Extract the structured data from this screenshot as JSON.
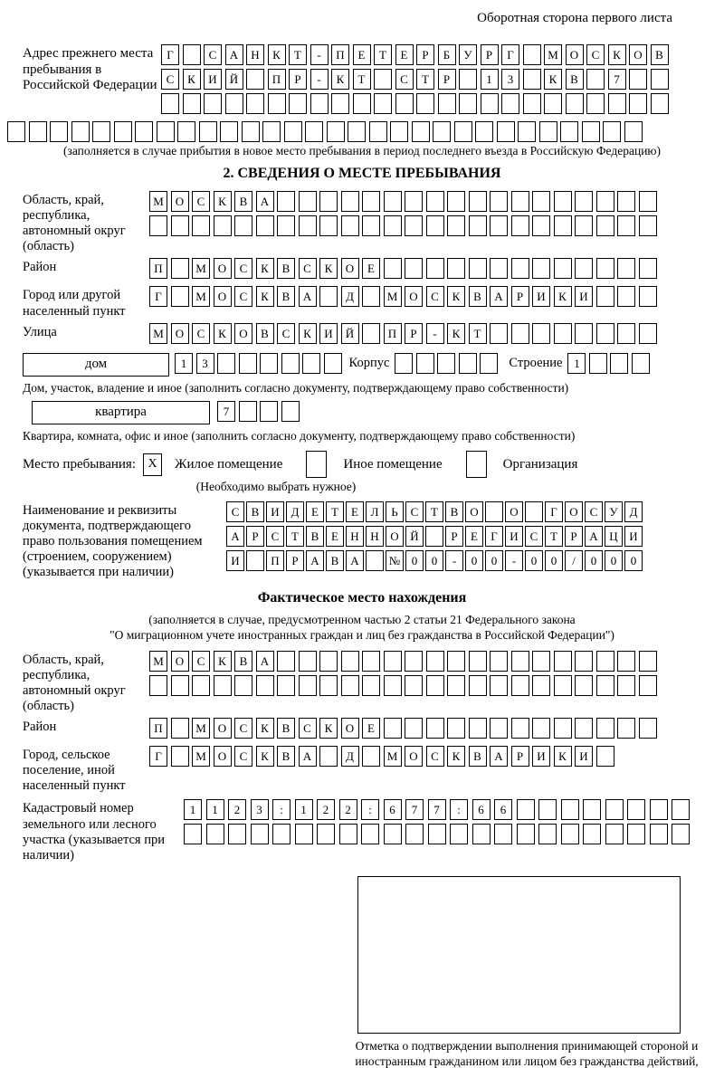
{
  "page": {
    "header_note": "Оборотная сторона первого листа"
  },
  "prev_address": {
    "label": "Адрес прежнего места пребывания в Российской Федерации",
    "rows": [
      {
        "len": 24,
        "text": "Г САНКТ-ПЕТЕРБУРГ МОСКОВ"
      },
      {
        "len": 24,
        "text": "СКИЙ ПР-КТ СТР 13 КВ 7"
      },
      {
        "len": 24,
        "text": ""
      }
    ],
    "overflow_row": {
      "len": 30,
      "text": ""
    },
    "note": "(заполняется в случае прибытия в новое место пребывания в период последнего въезда в Российскую Федерацию)"
  },
  "section2": {
    "title": "2. СВЕДЕНИЯ О МЕСТЕ ПРЕБЫВАНИЯ",
    "oblast": {
      "label": "Область, край, республика, автономный округ (область)",
      "rows": [
        {
          "len": 24,
          "text": "МОСКВА"
        },
        {
          "len": 24,
          "text": ""
        }
      ]
    },
    "raion": {
      "label": "Район",
      "row": {
        "len": 24,
        "text": "П МОСКВСКОЕ"
      }
    },
    "gorod": {
      "label": "Город или другой населенный пункт",
      "row": {
        "len": 24,
        "text": "Г МОСКВА Д МОСКВАРИКИ"
      }
    },
    "ulitsa": {
      "label": "Улица",
      "row": {
        "len": 24,
        "text": "МОСКОВСКИЙ ПР-КТ"
      }
    },
    "dom": {
      "box_label": "дом",
      "cells": {
        "len": 8,
        "text": "13"
      },
      "korpus_label": "Корпус",
      "korpus_cells": {
        "len": 5,
        "text": ""
      },
      "stroenie_label": "Строение",
      "stroenie_cells": {
        "len": 4,
        "text": "1"
      },
      "caption": "Дом, участок, владение и иное (заполнить согласно документу, подтверждающему право собственности)"
    },
    "kvartira": {
      "box_label": "квартира",
      "cells": {
        "len": 4,
        "text": "7"
      },
      "caption": "Квартира, комната, офис и иное (заполнить согласно документу, подтверждающему право собственности)"
    },
    "mesto": {
      "label": "Место пребывания:",
      "options": [
        {
          "mark": "X",
          "label": "Жилое помещение"
        },
        {
          "mark": "",
          "label": "Иное помещение"
        },
        {
          "mark": "",
          "label": "Организация"
        }
      ],
      "note": "(Необходимо выбрать нужное)"
    },
    "document": {
      "label": "Наименование и реквизиты документа, подтверждающего право пользования помещением (строением, сооружением) (указывается при наличии)",
      "rows": [
        {
          "len": 21,
          "text": "СВИДЕТЕЛЬСТВО О ГОСУД"
        },
        {
          "len": 21,
          "text": "АРСТВЕННОЙ РЕГИСТРАЦИ"
        },
        {
          "len": 21,
          "text": "И ПРАВА №00-00-00/000"
        }
      ]
    }
  },
  "fact": {
    "title": "Фактическое место нахождения",
    "note_line1": "(заполняется в случае, предусмотренном частью 2 статьи 21 Федерального закона",
    "note_line2": "\"О миграционном учете иностранных граждан и лиц без гражданства в Российской Федерации\")",
    "oblast": {
      "label": "Область, край, республика, автономный округ (область)",
      "rows": [
        {
          "len": 24,
          "text": "МОСКВА"
        },
        {
          "len": 24,
          "text": ""
        }
      ]
    },
    "raion": {
      "label": "Район",
      "row": {
        "len": 24,
        "text": "П МОСКВСКОЕ"
      }
    },
    "gorod": {
      "label": "Город, сельское поселение, иной населенный пункт",
      "row": {
        "len": 22,
        "text": "Г МОСКВА Д МОСКВАРИКИ"
      }
    },
    "kadastr": {
      "label": "Кадастровый номер земельного или лесного участка (указывается при наличии)",
      "rows": [
        {
          "len": 23,
          "text": "1123:122:677:66"
        },
        {
          "len": 23,
          "text": ""
        }
      ]
    },
    "stamp_caption": "Отметка о подтверждении выполнения принимающей стороной и иностранным гражданином или лицом без гражданства действий, необходимых для его постановки на учет по месту пребывания"
  }
}
